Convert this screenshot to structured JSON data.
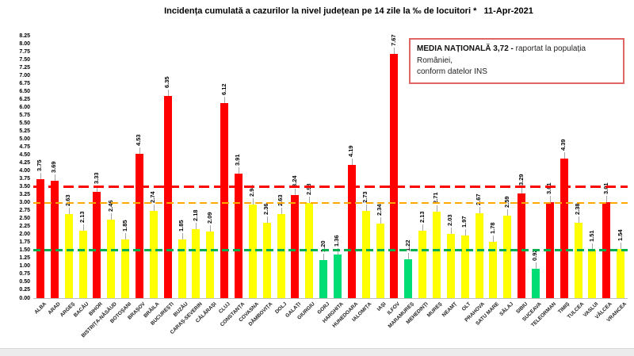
{
  "title": "Incidența cumulată a cazurilor la nivel județean pe 14 zile la ‰ de locuitori *   11-Apr-2021",
  "legend": {
    "bold": "MEDIA NAȚIONALĂ  3,72 - ",
    "rest": "raportat la populația României,",
    "line2": "conform datelor INS"
  },
  "chart_data": {
    "type": "bar",
    "title": "Incidența cumulată a cazurilor la nivel județean pe 14 zile la ‰ de locuitori * 11-Apr-2021",
    "categories": [
      "ALBA",
      "ARAD",
      "ARGEȘ",
      "BACĂU",
      "BIHOR",
      "BISTRIȚA-NĂSĂUD",
      "BOTOȘANI",
      "BRAȘOV",
      "BRĂILA",
      "BUCUREȘTI",
      "BUZĂU",
      "CARAȘ-SEVERIN",
      "CĂLĂRAȘI",
      "CLUJ",
      "CONSTANȚA",
      "COVASNA",
      "DÂMBOVIȚA",
      "DOLJ",
      "GALAȚI",
      "GIURGIU",
      "GORJ",
      "HARGHITA",
      "HUNEDOARA",
      "IALOMIȚA",
      "IAȘI",
      "ILFOV",
      "MARAMUREȘ",
      "MEHEDINȚI",
      "MUREȘ",
      "NEAMȚ",
      "OLT",
      "PRAHOVA",
      "SATU MARE",
      "SĂLAJ",
      "SIBIU",
      "SUCEAVA",
      "TELEORMAN",
      "TIMIȘ",
      "TULCEA",
      "VASLUI",
      "VÂLCEA",
      "VRANCEA"
    ],
    "values": [
      3.75,
      3.69,
      2.63,
      2.13,
      3.33,
      2.46,
      1.85,
      4.53,
      2.74,
      6.35,
      1.85,
      2.18,
      2.09,
      6.12,
      3.91,
      2.94,
      2.36,
      2.63,
      3.24,
      2.98,
      1.2,
      1.36,
      4.19,
      2.73,
      2.34,
      7.67,
      1.22,
      2.13,
      2.71,
      2.03,
      1.97,
      2.67,
      1.78,
      2.59,
      3.29,
      0.92,
      3.01,
      4.39,
      2.38,
      1.51,
      3.01,
      1.54
    ],
    "national_average": 3.72,
    "ylim": [
      0,
      8.25
    ],
    "ytick_step": 0.25,
    "grid": false,
    "legend_position": "top-right",
    "value_labels": "rotated-90-above-bars",
    "thresholds": {
      "green_line": 1.5,
      "orange_line": 3.0,
      "red_line": 3.5
    },
    "zone_colors": {
      "low": "#00dd75",
      "mid": "#ffff00",
      "high": "#ff0000"
    },
    "line_colors": {
      "green_line": "#00b050",
      "orange_line": "#ffa800",
      "red_line": "#ff0000"
    }
  }
}
